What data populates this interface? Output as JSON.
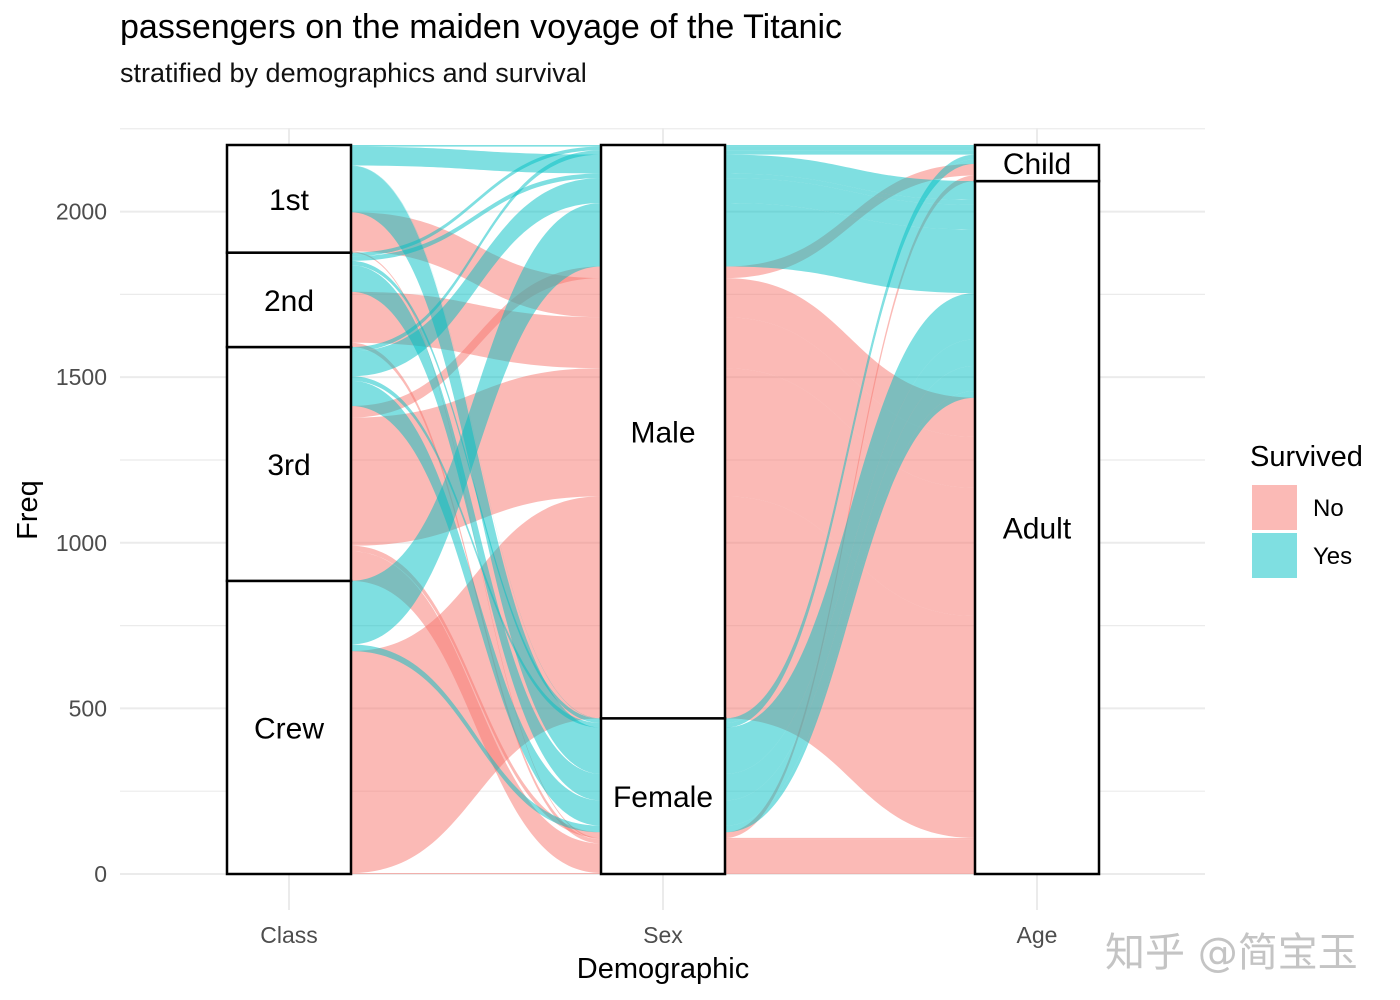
{
  "title": "passengers on the maiden voyage of the Titanic",
  "subtitle": "stratified by demographics and survival",
  "watermark": "知乎 @简宝玉",
  "chart_data": {
    "type": "alluvial",
    "xlabel": "Demographic",
    "ylabel": "Freq",
    "ylim": [
      0,
      2201
    ],
    "yticks": [
      0,
      500,
      1000,
      1500,
      2000
    ],
    "axes": [
      "Class",
      "Sex",
      "Age"
    ],
    "strata": {
      "Class": [
        "Crew",
        "3rd",
        "2nd",
        "1st"
      ],
      "Sex": [
        "Female",
        "Male"
      ],
      "Age": [
        "Adult",
        "Child"
      ]
    },
    "legend": {
      "title": "Survived",
      "position": "right",
      "entries": [
        "No",
        "Yes"
      ]
    },
    "colors": {
      "No": "#F8766D",
      "Yes": "#00BFC4"
    },
    "grid": true,
    "flows": [
      {
        "Class": "1st",
        "Sex": "Male",
        "Age": "Child",
        "Survived": "No",
        "Freq": 0
      },
      {
        "Class": "2nd",
        "Sex": "Male",
        "Age": "Child",
        "Survived": "No",
        "Freq": 0
      },
      {
        "Class": "3rd",
        "Sex": "Male",
        "Age": "Child",
        "Survived": "No",
        "Freq": 35
      },
      {
        "Class": "Crew",
        "Sex": "Male",
        "Age": "Child",
        "Survived": "No",
        "Freq": 0
      },
      {
        "Class": "1st",
        "Sex": "Female",
        "Age": "Child",
        "Survived": "No",
        "Freq": 0
      },
      {
        "Class": "2nd",
        "Sex": "Female",
        "Age": "Child",
        "Survived": "No",
        "Freq": 0
      },
      {
        "Class": "3rd",
        "Sex": "Female",
        "Age": "Child",
        "Survived": "No",
        "Freq": 17
      },
      {
        "Class": "Crew",
        "Sex": "Female",
        "Age": "Child",
        "Survived": "No",
        "Freq": 0
      },
      {
        "Class": "1st",
        "Sex": "Male",
        "Age": "Adult",
        "Survived": "No",
        "Freq": 118
      },
      {
        "Class": "2nd",
        "Sex": "Male",
        "Age": "Adult",
        "Survived": "No",
        "Freq": 154
      },
      {
        "Class": "3rd",
        "Sex": "Male",
        "Age": "Adult",
        "Survived": "No",
        "Freq": 387
      },
      {
        "Class": "Crew",
        "Sex": "Male",
        "Age": "Adult",
        "Survived": "No",
        "Freq": 670
      },
      {
        "Class": "1st",
        "Sex": "Female",
        "Age": "Adult",
        "Survived": "No",
        "Freq": 4
      },
      {
        "Class": "2nd",
        "Sex": "Female",
        "Age": "Adult",
        "Survived": "No",
        "Freq": 13
      },
      {
        "Class": "3rd",
        "Sex": "Female",
        "Age": "Adult",
        "Survived": "No",
        "Freq": 89
      },
      {
        "Class": "Crew",
        "Sex": "Female",
        "Age": "Adult",
        "Survived": "No",
        "Freq": 3
      },
      {
        "Class": "1st",
        "Sex": "Male",
        "Age": "Child",
        "Survived": "Yes",
        "Freq": 5
      },
      {
        "Class": "2nd",
        "Sex": "Male",
        "Age": "Child",
        "Survived": "Yes",
        "Freq": 11
      },
      {
        "Class": "3rd",
        "Sex": "Male",
        "Age": "Child",
        "Survived": "Yes",
        "Freq": 13
      },
      {
        "Class": "Crew",
        "Sex": "Male",
        "Age": "Child",
        "Survived": "Yes",
        "Freq": 0
      },
      {
        "Class": "1st",
        "Sex": "Female",
        "Age": "Child",
        "Survived": "Yes",
        "Freq": 1
      },
      {
        "Class": "2nd",
        "Sex": "Female",
        "Age": "Child",
        "Survived": "Yes",
        "Freq": 13
      },
      {
        "Class": "3rd",
        "Sex": "Female",
        "Age": "Child",
        "Survived": "Yes",
        "Freq": 14
      },
      {
        "Class": "Crew",
        "Sex": "Female",
        "Age": "Child",
        "Survived": "Yes",
        "Freq": 0
      },
      {
        "Class": "1st",
        "Sex": "Male",
        "Age": "Adult",
        "Survived": "Yes",
        "Freq": 57
      },
      {
        "Class": "2nd",
        "Sex": "Male",
        "Age": "Adult",
        "Survived": "Yes",
        "Freq": 14
      },
      {
        "Class": "3rd",
        "Sex": "Male",
        "Age": "Adult",
        "Survived": "Yes",
        "Freq": 75
      },
      {
        "Class": "Crew",
        "Sex": "Male",
        "Age": "Adult",
        "Survived": "Yes",
        "Freq": 192
      },
      {
        "Class": "1st",
        "Sex": "Female",
        "Age": "Adult",
        "Survived": "Yes",
        "Freq": 140
      },
      {
        "Class": "2nd",
        "Sex": "Female",
        "Age": "Adult",
        "Survived": "Yes",
        "Freq": 80
      },
      {
        "Class": "3rd",
        "Sex": "Female",
        "Age": "Adult",
        "Survived": "Yes",
        "Freq": 76
      },
      {
        "Class": "Crew",
        "Sex": "Female",
        "Age": "Adult",
        "Survived": "Yes",
        "Freq": 20
      }
    ]
  }
}
